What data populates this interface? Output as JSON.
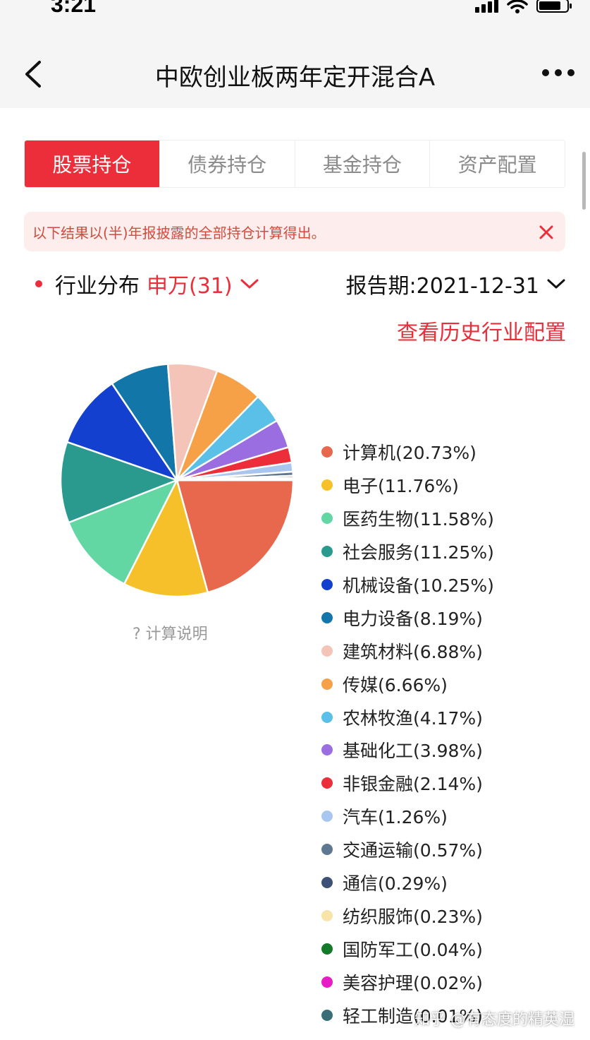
{
  "status_bar": {
    "time": "3:21"
  },
  "nav": {
    "title": "中欧创业板两年定开混合A"
  },
  "tabs": [
    {
      "label": "股票持仓",
      "active": true
    },
    {
      "label": "债券持仓",
      "active": false
    },
    {
      "label": "基金持仓",
      "active": false
    },
    {
      "label": "资产配置",
      "active": false
    }
  ],
  "notice": {
    "text": "以下结果以(半)年报披露的全部持仓计算得出。"
  },
  "industry": {
    "label": "行业分布",
    "source": "申万(31)",
    "period_label": "报告期:2021-12-31",
    "history_link": "查看历史行业配置",
    "calc_note": "? 计算说明"
  },
  "colors": {
    "accent": "#ec2d3a"
  },
  "chart_data": {
    "type": "pie",
    "title": "",
    "unit": "%",
    "slices": [
      {
        "name": "计算机",
        "label": "计算机(20.73%)",
        "value": 20.73,
        "color": "#e8684e"
      },
      {
        "name": "电子",
        "label": "电子(11.76%)",
        "value": 11.76,
        "color": "#f5c02a"
      },
      {
        "name": "医药生物",
        "label": "医药生物(11.58%)",
        "value": 11.58,
        "color": "#62d7a4"
      },
      {
        "name": "社会服务",
        "label": "社会服务(11.25%)",
        "value": 11.25,
        "color": "#2a9a8f"
      },
      {
        "name": "机械设备",
        "label": "机械设备(10.25%)",
        "value": 10.25,
        "color": "#1440d0"
      },
      {
        "name": "电力设备",
        "label": "电力设备(8.19%)",
        "value": 8.19,
        "color": "#1376a8"
      },
      {
        "name": "建筑材料",
        "label": "建筑材料(6.88%)",
        "value": 6.88,
        "color": "#f4c4b8"
      },
      {
        "name": "传媒",
        "label": "传媒(6.66%)",
        "value": 6.66,
        "color": "#f6a048"
      },
      {
        "name": "农林牧渔",
        "label": "农林牧渔(4.17%)",
        "value": 4.17,
        "color": "#5bc0e8"
      },
      {
        "name": "基础化工",
        "label": "基础化工(3.98%)",
        "value": 3.98,
        "color": "#9a6ee0"
      },
      {
        "name": "非银金融",
        "label": "非银金融(2.14%)",
        "value": 2.14,
        "color": "#ec2d3a"
      },
      {
        "name": "汽车",
        "label": "汽车(1.26%)",
        "value": 1.26,
        "color": "#a9c6f0"
      },
      {
        "name": "交通运输",
        "label": "交通运输(0.57%)",
        "value": 0.57,
        "color": "#5f7892"
      },
      {
        "name": "通信",
        "label": "通信(0.29%)",
        "value": 0.29,
        "color": "#3d5078"
      },
      {
        "name": "纺织服饰",
        "label": "纺织服饰(0.23%)",
        "value": 0.23,
        "color": "#f8e4a8"
      },
      {
        "name": "国防军工",
        "label": "国防军工(0.04%)",
        "value": 0.04,
        "color": "#137a2a"
      },
      {
        "name": "美容护理",
        "label": "美容护理(0.02%)",
        "value": 0.02,
        "color": "#e61cc4"
      },
      {
        "name": "轻工制造",
        "label": "轻工制造(0.01%)",
        "value": 0.01,
        "color": "#3a6e76"
      }
    ]
  },
  "watermark": "知乎 @有态度的精英湿"
}
